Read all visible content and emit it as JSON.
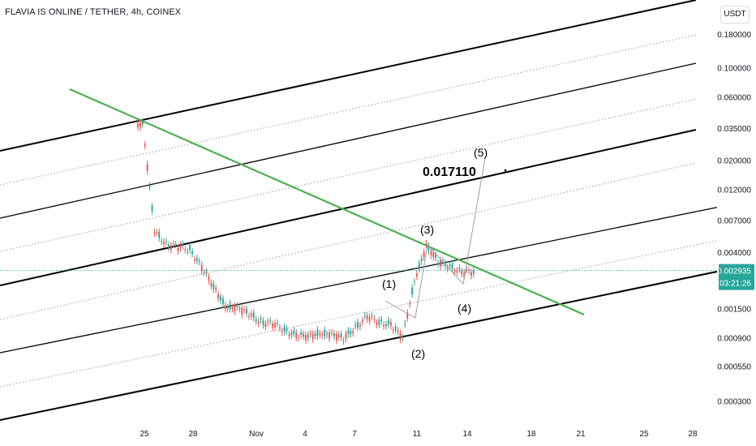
{
  "header": {
    "symbol": "FLAVIA IS ONLINE / TETHER, 4h, COINEX",
    "unit": "USDT"
  },
  "colors": {
    "up": "#26a69a",
    "down": "#ef5350",
    "channel": "#000000",
    "trendline": "#4caf50",
    "price_line": "#26a69a",
    "background": "#ffffff"
  },
  "chart_data": {
    "type": "candlestick",
    "title": "FLAVIA IS ONLINE / TETHER, 4h, COINEX",
    "y_scale": "log",
    "y_ticks": [
      "0.180000",
      "0.100000",
      "0.060000",
      "0.035000",
      "0.020000",
      "0.012000",
      "0.007000",
      "0.004000",
      "0.002935",
      "0.001500",
      "0.000900",
      "0.000550",
      "0.000300"
    ],
    "x_ticks": [
      "25",
      "28",
      "Nov",
      "4",
      "7",
      "11",
      "14",
      "18",
      "21",
      "25",
      "28"
    ],
    "last_price": "0.002935",
    "countdown": "03:21:26",
    "annotations": [
      "0.017110",
      "(1)",
      "(2)",
      "(3)",
      "(4)",
      "(5)"
    ],
    "series": [
      {
        "kind": "close",
        "values": [
          0.037,
          0.006,
          0.0046,
          0.0044,
          0.0043,
          0.0031,
          0.0022,
          0.0016,
          0.0015,
          0.0014,
          0.0012,
          0.00115,
          0.00105,
          0.00095,
          0.00092,
          0.001,
          0.00095,
          0.0009,
          0.0011,
          0.0013,
          0.0012,
          0.00115,
          0.0009,
          0.0025,
          0.0045,
          0.0034,
          0.0032,
          0.0028,
          0.0029
        ]
      }
    ]
  }
}
